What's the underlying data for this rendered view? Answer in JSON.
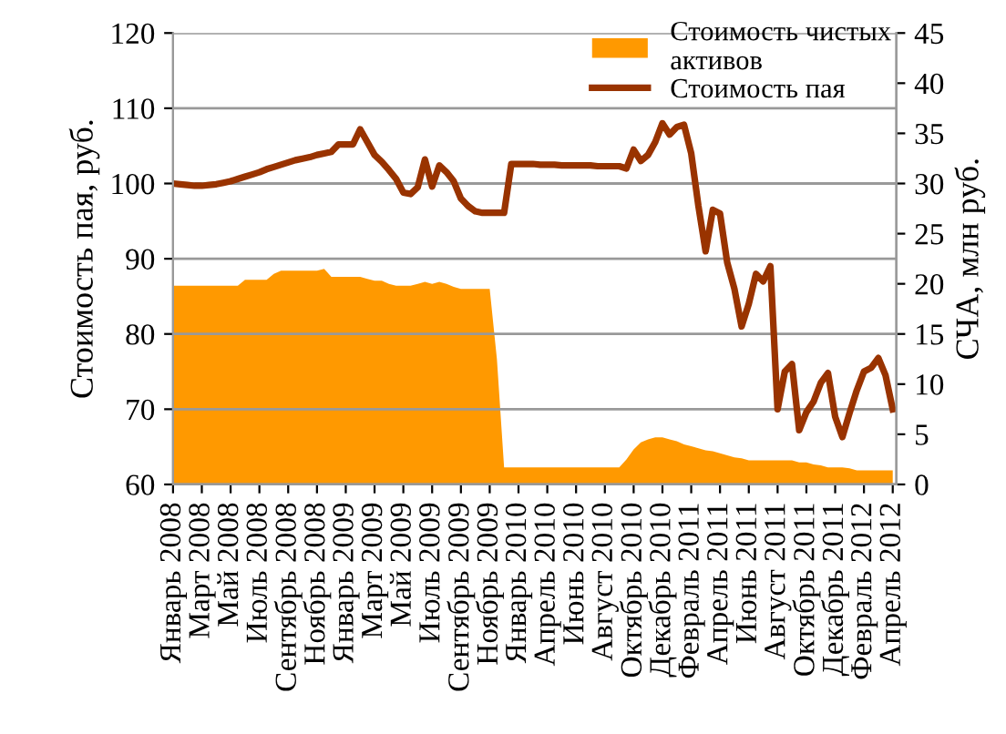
{
  "chart_data": {
    "type": "line",
    "ylabel": "Стоимость пая, руб.",
    "y2label": "СЧА, млн руб.",
    "categories": [
      "Январь 2008",
      null,
      null,
      null,
      "Март 2008",
      null,
      null,
      null,
      "Май 2008",
      null,
      null,
      null,
      "Июль 2008",
      null,
      null,
      null,
      "Сентябрь 2008",
      null,
      null,
      null,
      "Ноябрь 2008",
      null,
      null,
      null,
      "Январь 2009",
      null,
      null,
      null,
      "Март 2009",
      null,
      null,
      null,
      "Май 2009",
      null,
      null,
      null,
      "Июль 2009",
      null,
      null,
      null,
      "Сентябрь 2009",
      null,
      null,
      null,
      "Ноябрь 2009",
      null,
      null,
      null,
      "Январь 2010",
      null,
      null,
      null,
      "Апрель 2010",
      null,
      null,
      null,
      "Июнь 2010",
      null,
      null,
      null,
      "Август 2010",
      null,
      null,
      null,
      "Октябрь 2010",
      null,
      null,
      null,
      "Декабрь 2010",
      null,
      null,
      null,
      "Февраль 2011",
      null,
      null,
      null,
      "Апрель 2011",
      null,
      null,
      null,
      "Июнь 2011",
      null,
      null,
      null,
      "Август 2011",
      null,
      null,
      null,
      "Октябрь 2011",
      null,
      null,
      null,
      "Декабрь 2011",
      null,
      null,
      null,
      "Февраль 2012",
      null,
      null,
      null,
      "Апрель 2012"
    ],
    "series": [
      {
        "name": "Стоимость чистых активов",
        "type": "area",
        "axis": "y2",
        "color": "#ff9900",
        "values": [
          19.8,
          19.8,
          19.8,
          19.8,
          19.8,
          19.8,
          19.8,
          19.8,
          19.8,
          19.8,
          20.4,
          20.4,
          20.4,
          20.4,
          21,
          21.3,
          21.3,
          21.3,
          21.3,
          21.3,
          21.3,
          21.5,
          20.7,
          20.7,
          20.7,
          20.7,
          20.7,
          20.5,
          20.3,
          20.3,
          20,
          19.8,
          19.8,
          19.8,
          20,
          20.2,
          20,
          20.2,
          20,
          19.7,
          19.5,
          19.5,
          19.5,
          19.5,
          19.5,
          12.5,
          1.7,
          1.7,
          1.7,
          1.7,
          1.7,
          1.7,
          1.7,
          1.7,
          1.7,
          1.7,
          1.7,
          1.7,
          1.7,
          1.7,
          1.7,
          1.7,
          1.7,
          2.5,
          3.5,
          4.2,
          4.5,
          4.7,
          4.7,
          4.5,
          4.3,
          4,
          3.8,
          3.6,
          3.4,
          3.3,
          3.1,
          2.9,
          2.7,
          2.6,
          2.4,
          2.4,
          2.4,
          2.4,
          2.4,
          2.4,
          2.4,
          2.2,
          2.2,
          2,
          1.9,
          1.7,
          1.7,
          1.7,
          1.6,
          1.4,
          1.4,
          1.4,
          1.4,
          1.4,
          1.4
        ]
      },
      {
        "name": "Стоимость пая",
        "axis": "y",
        "color": "#993300",
        "values": [
          100,
          99.9,
          99.8,
          99.7,
          99.7,
          99.8,
          99.9,
          100.1,
          100.3,
          100.6,
          100.9,
          101.2,
          101.5,
          101.9,
          102.2,
          102.5,
          102.8,
          103.1,
          103.3,
          103.5,
          103.8,
          104,
          104.2,
          105.2,
          105.2,
          105.2,
          107.2,
          105.5,
          103.8,
          102.9,
          101.8,
          100.6,
          98.8,
          98.6,
          99.5,
          103.2,
          99.6,
          102.4,
          101.5,
          100.3,
          98,
          97,
          96.3,
          96.1,
          96.1,
          96.1,
          96.1,
          102.6,
          102.6,
          102.6,
          102.6,
          102.5,
          102.5,
          102.5,
          102.4,
          102.4,
          102.4,
          102.4,
          102.4,
          102.3,
          102.3,
          102.3,
          102.3,
          102,
          104.5,
          103,
          103.8,
          105.5,
          108,
          106.5,
          107.5,
          107.8,
          104,
          97,
          91,
          96.5,
          96,
          89.5,
          86,
          81,
          84,
          88,
          87,
          89,
          70,
          75,
          76,
          67.2,
          69.6,
          71,
          73.5,
          74.8,
          69,
          66.3,
          69.5,
          72.5,
          75,
          75.5,
          76.8,
          74.5,
          70
        ]
      }
    ],
    "ylim": [
      60,
      120
    ],
    "yticks": [
      60,
      70,
      80,
      90,
      100,
      110,
      120
    ],
    "y2lim": [
      0,
      45
    ],
    "y2ticks": [
      0,
      5,
      10,
      15,
      20,
      25,
      30,
      35,
      40,
      45
    ],
    "grid": "y",
    "legend": "top right"
  }
}
